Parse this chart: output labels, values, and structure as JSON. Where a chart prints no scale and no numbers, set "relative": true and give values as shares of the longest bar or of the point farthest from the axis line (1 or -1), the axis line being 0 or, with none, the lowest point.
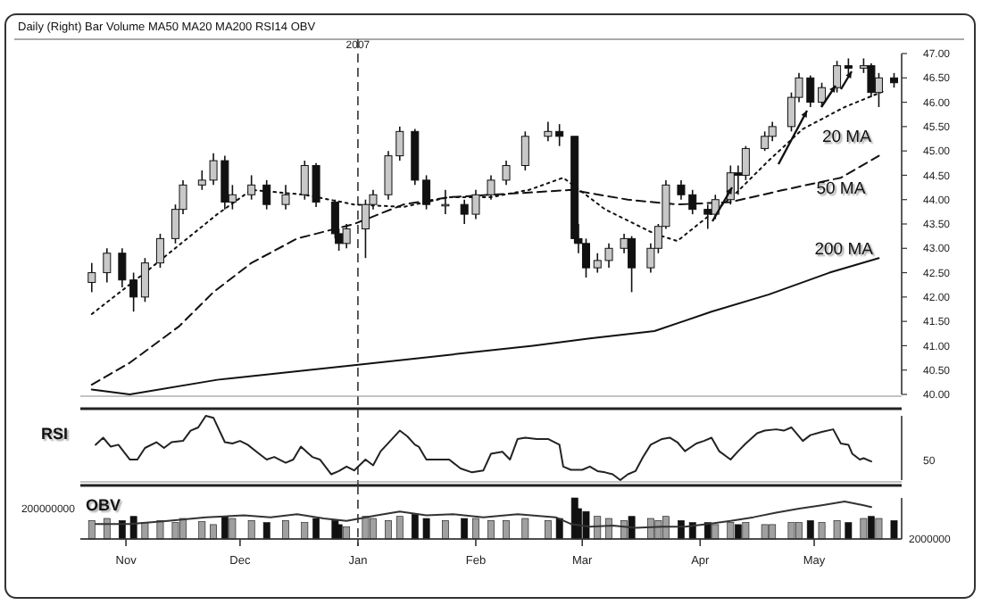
{
  "chart_data": [
    {
      "type": "candlestick",
      "title": "Daily  (Right)  Bar  Volume  MA50  MA20  MA200  RSI14  OBV",
      "x": [
        "2006-10-23",
        "2006-10-27",
        "2006-10-31",
        "2006-11-03",
        "2006-11-06",
        "2006-11-10",
        "2006-11-14",
        "2006-11-16",
        "2006-11-21",
        "2006-11-24",
        "2006-11-27",
        "2006-11-29",
        "2006-12-04",
        "2006-12-08",
        "2006-12-13",
        "2006-12-18",
        "2006-12-21",
        "2006-12-26",
        "2006-12-27",
        "2006-12-29",
        "2007-01-03",
        "2007-01-05",
        "2007-01-09",
        "2007-01-12",
        "2007-01-16",
        "2007-01-19",
        "2007-01-24",
        "2007-01-29",
        "2007-02-01",
        "2007-02-05",
        "2007-02-09",
        "2007-02-14",
        "2007-02-20",
        "2007-02-23",
        "2007-02-27",
        "2007-02-28",
        "2007-03-02",
        "2007-03-05",
        "2007-03-08",
        "2007-03-12",
        "2007-03-14",
        "2007-03-19",
        "2007-03-21",
        "2007-03-23",
        "2007-03-27",
        "2007-03-30",
        "2007-04-03",
        "2007-04-05",
        "2007-04-09",
        "2007-04-11",
        "2007-04-13",
        "2007-04-18",
        "2007-04-20",
        "2007-04-25",
        "2007-04-27",
        "2007-04-30",
        "2007-05-03",
        "2007-05-07",
        "2007-05-10",
        "2007-05-14",
        "2007-05-16",
        "2007-05-18",
        "2007-05-22"
      ],
      "ohlc": [
        [
          42.3,
          42.7,
          42.1,
          42.5
        ],
        [
          42.5,
          43.0,
          42.3,
          42.9
        ],
        [
          42.9,
          43.0,
          42.2,
          42.35
        ],
        [
          42.35,
          42.5,
          41.7,
          42.0
        ],
        [
          42.0,
          42.8,
          41.9,
          42.7
        ],
        [
          42.7,
          43.3,
          42.6,
          43.2
        ],
        [
          43.2,
          43.9,
          43.1,
          43.8
        ],
        [
          43.8,
          44.4,
          43.7,
          44.3
        ],
        [
          44.3,
          44.6,
          44.2,
          44.4
        ],
        [
          44.4,
          44.95,
          44.3,
          44.8
        ],
        [
          44.8,
          44.9,
          43.8,
          43.95
        ],
        [
          43.95,
          44.3,
          43.8,
          44.1
        ],
        [
          44.1,
          44.5,
          44.0,
          44.3
        ],
        [
          44.3,
          44.4,
          43.8,
          43.9
        ],
        [
          43.9,
          44.3,
          43.8,
          44.1
        ],
        [
          44.1,
          44.8,
          44.0,
          44.7
        ],
        [
          44.7,
          44.75,
          43.85,
          43.95
        ],
        [
          43.95,
          44.0,
          43.2,
          43.3
        ],
        [
          43.3,
          43.4,
          42.95,
          43.1
        ],
        [
          43.1,
          43.5,
          43.0,
          43.4
        ],
        [
          43.4,
          44.0,
          42.8,
          43.9
        ],
        [
          43.9,
          44.2,
          43.8,
          44.1
        ],
        [
          44.1,
          45.0,
          44.0,
          44.9
        ],
        [
          44.9,
          45.5,
          44.8,
          45.4
        ],
        [
          45.4,
          45.45,
          44.3,
          44.4
        ],
        [
          44.4,
          44.5,
          43.8,
          43.9
        ],
        [
          43.9,
          44.2,
          43.7,
          43.9
        ],
        [
          43.9,
          44.0,
          43.5,
          43.7
        ],
        [
          43.7,
          44.2,
          43.6,
          44.1
        ],
        [
          44.1,
          44.5,
          44.0,
          44.4
        ],
        [
          44.4,
          44.8,
          44.3,
          44.7
        ],
        [
          44.7,
          45.4,
          44.6,
          45.3
        ],
        [
          45.3,
          45.6,
          45.2,
          45.4
        ],
        [
          45.4,
          45.55,
          45.1,
          45.3
        ],
        [
          45.3,
          45.3,
          43.1,
          43.2
        ],
        [
          43.2,
          43.5,
          42.9,
          43.1
        ],
        [
          43.1,
          43.2,
          42.4,
          42.6
        ],
        [
          42.6,
          42.9,
          42.5,
          42.75
        ],
        [
          42.75,
          43.1,
          42.6,
          43.0
        ],
        [
          43.0,
          43.3,
          42.9,
          43.2
        ],
        [
          43.2,
          43.25,
          42.1,
          42.6
        ],
        [
          42.6,
          43.1,
          42.5,
          43.0
        ],
        [
          43.0,
          43.5,
          42.9,
          43.45
        ],
        [
          43.45,
          44.4,
          43.4,
          44.3
        ],
        [
          44.3,
          44.4,
          44.0,
          44.1
        ],
        [
          44.1,
          44.2,
          43.7,
          43.8
        ],
        [
          43.8,
          43.9,
          43.4,
          43.7
        ],
        [
          43.7,
          44.1,
          43.6,
          44.0
        ],
        [
          44.0,
          44.7,
          43.9,
          44.55
        ],
        [
          44.55,
          44.7,
          44.1,
          44.5
        ],
        [
          44.5,
          45.1,
          44.4,
          45.05
        ],
        [
          45.05,
          45.4,
          45.0,
          45.3
        ],
        [
          45.3,
          45.6,
          45.2,
          45.5
        ],
        [
          45.5,
          46.2,
          45.4,
          46.1
        ],
        [
          46.1,
          46.6,
          46.0,
          46.5
        ],
        [
          46.5,
          46.55,
          45.9,
          46.0
        ],
        [
          46.0,
          46.4,
          45.9,
          46.3
        ],
        [
          46.3,
          46.85,
          46.2,
          46.75
        ],
        [
          46.75,
          46.9,
          46.5,
          46.7
        ],
        [
          46.7,
          46.9,
          46.6,
          46.75
        ],
        [
          46.75,
          46.8,
          46.1,
          46.2
        ],
        [
          46.2,
          46.6,
          45.9,
          46.5
        ],
        [
          46.5,
          46.6,
          46.3,
          46.4
        ]
      ],
      "series": [
        {
          "name": "20 MA",
          "type": "line",
          "color": "#111111",
          "line_style": "dotted",
          "x": [
            "2006-10-23",
            "2006-11-06",
            "2006-11-25",
            "2006-12-04",
            "2006-12-18",
            "2006-12-31",
            "2007-01-13",
            "2007-01-25",
            "2007-02-05",
            "2007-02-15",
            "2007-02-24",
            "2007-03-07",
            "2007-03-20",
            "2007-03-26",
            "2007-04-03",
            "2007-04-10",
            "2007-04-19",
            "2007-04-28",
            "2007-05-09",
            "2007-05-20"
          ],
          "values": [
            41.65,
            42.5,
            43.7,
            44.2,
            44.1,
            43.9,
            43.85,
            44.05,
            44.05,
            44.2,
            44.45,
            43.8,
            43.3,
            43.15,
            43.65,
            44.1,
            44.8,
            45.45,
            45.9,
            46.25
          ]
        },
        {
          "name": "50 MA",
          "type": "line",
          "color": "#111111",
          "line_style": "dashed",
          "x": [
            "2006-10-23",
            "2006-11-02",
            "2006-11-15",
            "2006-11-24",
            "2006-12-04",
            "2006-12-16",
            "2006-12-31",
            "2007-01-13",
            "2007-01-25",
            "2007-02-16",
            "2007-02-26",
            "2007-03-13",
            "2007-03-26",
            "2007-04-09",
            "2007-04-23",
            "2007-05-08",
            "2007-05-18"
          ],
          "values": [
            40.2,
            40.65,
            41.4,
            42.1,
            42.7,
            43.2,
            43.5,
            43.9,
            44.05,
            44.15,
            44.2,
            44.0,
            43.9,
            43.95,
            44.2,
            44.45,
            44.9
          ]
        },
        {
          "name": "200 MA",
          "type": "line",
          "color": "#111111",
          "line_style": "solid",
          "x": [
            "2006-10-23",
            "2006-11-02",
            "2006-11-25",
            "2006-12-31",
            "2007-02-16",
            "2007-03-03",
            "2007-03-20",
            "2007-04-04",
            "2007-04-19",
            "2007-05-05",
            "2007-05-18"
          ],
          "values": [
            40.1,
            40.0,
            40.3,
            40.6,
            41.0,
            41.15,
            41.3,
            41.7,
            42.05,
            42.5,
            42.8
          ]
        }
      ],
      "xlim": [
        "2006-10-20",
        "2007-05-24"
      ],
      "ylim": [
        40,
        47
      ],
      "yticks": [
        {
          "value": 40,
          "label": "40.00"
        },
        {
          "value": 40.5,
          "label": "40.50"
        },
        {
          "value": 41,
          "label": "41.00"
        },
        {
          "value": 41.5,
          "label": "41.50"
        },
        {
          "value": 42,
          "label": "42.00"
        },
        {
          "value": 42.5,
          "label": "42.50"
        },
        {
          "value": 43,
          "label": "43.00"
        },
        {
          "value": 43.5,
          "label": "43.50"
        },
        {
          "value": 44,
          "label": "44.00"
        },
        {
          "value": 44.5,
          "label": "44.50"
        },
        {
          "value": 45,
          "label": "45.00"
        },
        {
          "value": 45.5,
          "label": "45.50"
        },
        {
          "value": 46,
          "label": "46.00"
        },
        {
          "value": 46.5,
          "label": "46.50"
        },
        {
          "value": 47,
          "label": "47.00"
        }
      ],
      "tick_labels": "y",
      "ref_lines": [
        {
          "axis": "x",
          "value": "2007-01-01",
          "label": "2007",
          "line_style": "dashed"
        }
      ]
    },
    {
      "type": "line",
      "title": "RSI",
      "relative": true,
      "color": "#222222",
      "x": [
        "2006-10-24",
        "2006-10-26",
        "2006-10-28",
        "2006-10-30",
        "2006-11-02",
        "2006-11-04",
        "2006-11-06",
        "2006-11-09",
        "2006-11-11",
        "2006-11-13",
        "2006-11-16",
        "2006-11-18",
        "2006-11-20",
        "2006-11-22",
        "2006-11-24",
        "2006-11-27",
        "2006-11-29",
        "2006-12-01",
        "2006-12-03",
        "2006-12-06",
        "2006-12-08",
        "2006-12-10",
        "2006-12-13",
        "2006-12-15",
        "2006-12-17",
        "2006-12-20",
        "2006-12-22",
        "2006-12-25",
        "2006-12-27",
        "2006-12-29",
        "2006-12-31",
        "2007-01-03",
        "2007-01-05",
        "2007-01-07",
        "2007-01-10",
        "2007-01-12",
        "2007-01-14",
        "2007-01-16",
        "2007-01-17",
        "2007-01-19",
        "2007-01-22",
        "2007-01-25",
        "2007-01-28",
        "2007-01-31",
        "2007-02-03",
        "2007-02-05",
        "2007-02-08",
        "2007-02-10",
        "2007-02-12",
        "2007-02-14",
        "2007-02-17",
        "2007-02-20",
        "2007-02-23",
        "2007-02-24",
        "2007-02-26",
        "2007-03-01",
        "2007-03-03",
        "2007-03-05",
        "2007-03-07",
        "2007-03-09",
        "2007-03-11",
        "2007-03-13",
        "2007-03-15",
        "2007-03-17",
        "2007-03-19",
        "2007-03-22",
        "2007-03-24",
        "2007-03-26",
        "2007-03-28",
        "2007-03-31",
        "2007-04-02",
        "2007-04-04",
        "2007-04-06",
        "2007-04-09",
        "2007-04-11",
        "2007-04-13",
        "2007-04-16",
        "2007-04-18",
        "2007-04-21",
        "2007-04-23",
        "2007-04-25",
        "2007-04-28",
        "2007-04-30",
        "2007-05-03",
        "2007-05-06",
        "2007-05-08",
        "2007-05-10",
        "2007-05-11",
        "2007-05-13",
        "2007-05-14",
        "2007-05-16"
      ],
      "values": [
        0.55,
        0.66,
        0.52,
        0.55,
        0.32,
        0.32,
        0.5,
        0.59,
        0.5,
        0.59,
        0.61,
        0.77,
        0.82,
        1,
        0.97,
        0.59,
        0.57,
        0.61,
        0.55,
        0.41,
        0.32,
        0.36,
        0.27,
        0.32,
        0.52,
        0.36,
        0.32,
        0.09,
        0.14,
        0.21,
        0.15,
        0.32,
        0.23,
        0.45,
        0.64,
        0.77,
        0.68,
        0.55,
        0.52,
        0.32,
        0.32,
        0.32,
        0.18,
        0.12,
        0.15,
        0.41,
        0.44,
        0.32,
        0.64,
        0.66,
        0.64,
        0.64,
        0.55,
        0.21,
        0.16,
        0.16,
        0.21,
        0.14,
        0.12,
        0.09,
        0,
        0.09,
        0.14,
        0.36,
        0.55,
        0.64,
        0.66,
        0.59,
        0.45,
        0.57,
        0.61,
        0.66,
        0.45,
        0.32,
        0.45,
        0.57,
        0.73,
        0.77,
        0.79,
        0.77,
        0.82,
        0.61,
        0.7,
        0.75,
        0.79,
        0.57,
        0.55,
        0.41,
        0.32,
        0.34,
        0.29
      ],
      "xlim": [
        "2006-10-20",
        "2007-05-24"
      ],
      "annotations": [
        "50"
      ],
      "ref_lines": [
        {
          "axis": "x",
          "value": "2007-01-01",
          "line_style": "dashed"
        }
      ]
    },
    {
      "type": "bar",
      "title": "OBV",
      "relative": true,
      "series": [
        {
          "type": "bar",
          "x": [
            "2006-10-23",
            "2006-10-27",
            "2006-10-31",
            "2006-11-03",
            "2006-11-06",
            "2006-11-10",
            "2006-11-14",
            "2006-11-16",
            "2006-11-21",
            "2006-11-24",
            "2006-11-27",
            "2006-11-29",
            "2006-12-04",
            "2006-12-08",
            "2006-12-13",
            "2006-12-18",
            "2006-12-21",
            "2006-12-26",
            "2006-12-27",
            "2006-12-29",
            "2007-01-03",
            "2007-01-05",
            "2007-01-09",
            "2007-01-12",
            "2007-01-16",
            "2007-01-19",
            "2007-01-24",
            "2007-01-29",
            "2007-02-01",
            "2007-02-05",
            "2007-02-09",
            "2007-02-14",
            "2007-02-20",
            "2007-02-23",
            "2007-02-27",
            "2007-02-28",
            "2007-03-02",
            "2007-03-05",
            "2007-03-08",
            "2007-03-12",
            "2007-03-14",
            "2007-03-19",
            "2007-03-21",
            "2007-03-23",
            "2007-03-27",
            "2007-03-30",
            "2007-04-03",
            "2007-04-05",
            "2007-04-09",
            "2007-04-11",
            "2007-04-13",
            "2007-04-18",
            "2007-04-20",
            "2007-04-25",
            "2007-04-27",
            "2007-04-30",
            "2007-05-03",
            "2007-05-07",
            "2007-05-10",
            "2007-05-14",
            "2007-05-16",
            "2007-05-18",
            "2007-05-22"
          ],
          "values": [
            0.45,
            0.5,
            0.45,
            0.55,
            0.4,
            0.45,
            0.4,
            0.5,
            0.42,
            0.35,
            0.55,
            0.5,
            0.45,
            0.4,
            0.45,
            0.4,
            0.5,
            0.45,
            0.35,
            0.3,
            0.55,
            0.5,
            0.45,
            0.55,
            0.6,
            0.5,
            0.45,
            0.5,
            0.5,
            0.45,
            0.45,
            0.5,
            0.45,
            0.5,
            1,
            0.74,
            0.67,
            0.55,
            0.5,
            0.45,
            0.55,
            0.5,
            0.45,
            0.55,
            0.45,
            0.4,
            0.4,
            0.35,
            0.4,
            0.35,
            0.4,
            0.35,
            0.35,
            0.4,
            0.4,
            0.45,
            0.4,
            0.45,
            0.4,
            0.5,
            0.55,
            0.5,
            0.45
          ],
          "colors": [
            "#a0a0a0",
            "#a0a0a0",
            "#111111",
            "#111111",
            "#a0a0a0",
            "#a0a0a0",
            "#a0a0a0",
            "#a0a0a0",
            "#a0a0a0",
            "#a0a0a0",
            "#111111",
            "#a0a0a0",
            "#a0a0a0",
            "#111111",
            "#a0a0a0",
            "#a0a0a0",
            "#111111",
            "#111111",
            "#111111",
            "#a0a0a0",
            "#a0a0a0",
            "#a0a0a0",
            "#a0a0a0",
            "#a0a0a0",
            "#111111",
            "#111111",
            "#a0a0a0",
            "#111111",
            "#a0a0a0",
            "#a0a0a0",
            "#a0a0a0",
            "#a0a0a0",
            "#a0a0a0",
            "#111111",
            "#111111",
            "#111111",
            "#111111",
            "#a0a0a0",
            "#a0a0a0",
            "#a0a0a0",
            "#111111",
            "#a0a0a0",
            "#a0a0a0",
            "#a0a0a0",
            "#111111",
            "#111111",
            "#111111",
            "#a0a0a0",
            "#a0a0a0",
            "#111111",
            "#a0a0a0",
            "#a0a0a0",
            "#a0a0a0",
            "#a0a0a0",
            "#a0a0a0",
            "#111111",
            "#a0a0a0",
            "#a0a0a0",
            "#111111",
            "#a0a0a0",
            "#111111",
            "#a0a0a0",
            "#111111"
          ]
        },
        {
          "type": "line",
          "axis": "y2",
          "color": "#333333",
          "x": [
            "2006-10-24",
            "2006-11-02",
            "2006-11-12",
            "2006-11-22",
            "2006-12-02",
            "2006-12-09",
            "2006-12-16",
            "2006-12-23",
            "2006-12-29",
            "2007-01-06",
            "2007-01-12",
            "2007-01-19",
            "2007-01-26",
            "2007-02-03",
            "2007-02-12",
            "2007-02-22",
            "2007-02-26",
            "2007-03-03",
            "2007-03-09",
            "2007-03-15",
            "2007-03-22",
            "2007-03-28",
            "2007-04-03",
            "2007-04-09",
            "2007-04-15",
            "2007-04-21",
            "2007-04-27",
            "2007-05-03",
            "2007-05-09",
            "2007-05-14",
            "2007-05-16"
          ],
          "values": [
            0.4,
            0.4,
            0.48,
            0.58,
            0.63,
            0.58,
            0.66,
            0.55,
            0.48,
            0.63,
            0.73,
            0.63,
            0.66,
            0.58,
            0.66,
            0.58,
            0.4,
            0.33,
            0.36,
            0.3,
            0.33,
            0.33,
            0.4,
            0.48,
            0.58,
            0.7,
            0.81,
            0.9,
            1,
            0.9,
            0.85
          ]
        }
      ],
      "xlim": [
        "2006-10-20",
        "2007-05-24"
      ],
      "xticks": [
        {
          "value": "2006-11-01",
          "label": "Nov"
        },
        {
          "value": "2006-12-01",
          "label": "Dec"
        },
        {
          "value": "2007-01-01",
          "label": "Jan"
        },
        {
          "value": "2007-02-01",
          "label": "Feb"
        },
        {
          "value": "2007-03-01",
          "label": "Mar"
        },
        {
          "value": "2007-04-01",
          "label": "Apr"
        },
        {
          "value": "2007-05-01",
          "label": "May"
        }
      ],
      "tick_labels": "x",
      "annotations": [
        "200000000",
        "2000000"
      ],
      "ref_lines": [
        {
          "axis": "x",
          "value": "2007-01-01",
          "line_style": "dashed"
        }
      ]
    }
  ]
}
